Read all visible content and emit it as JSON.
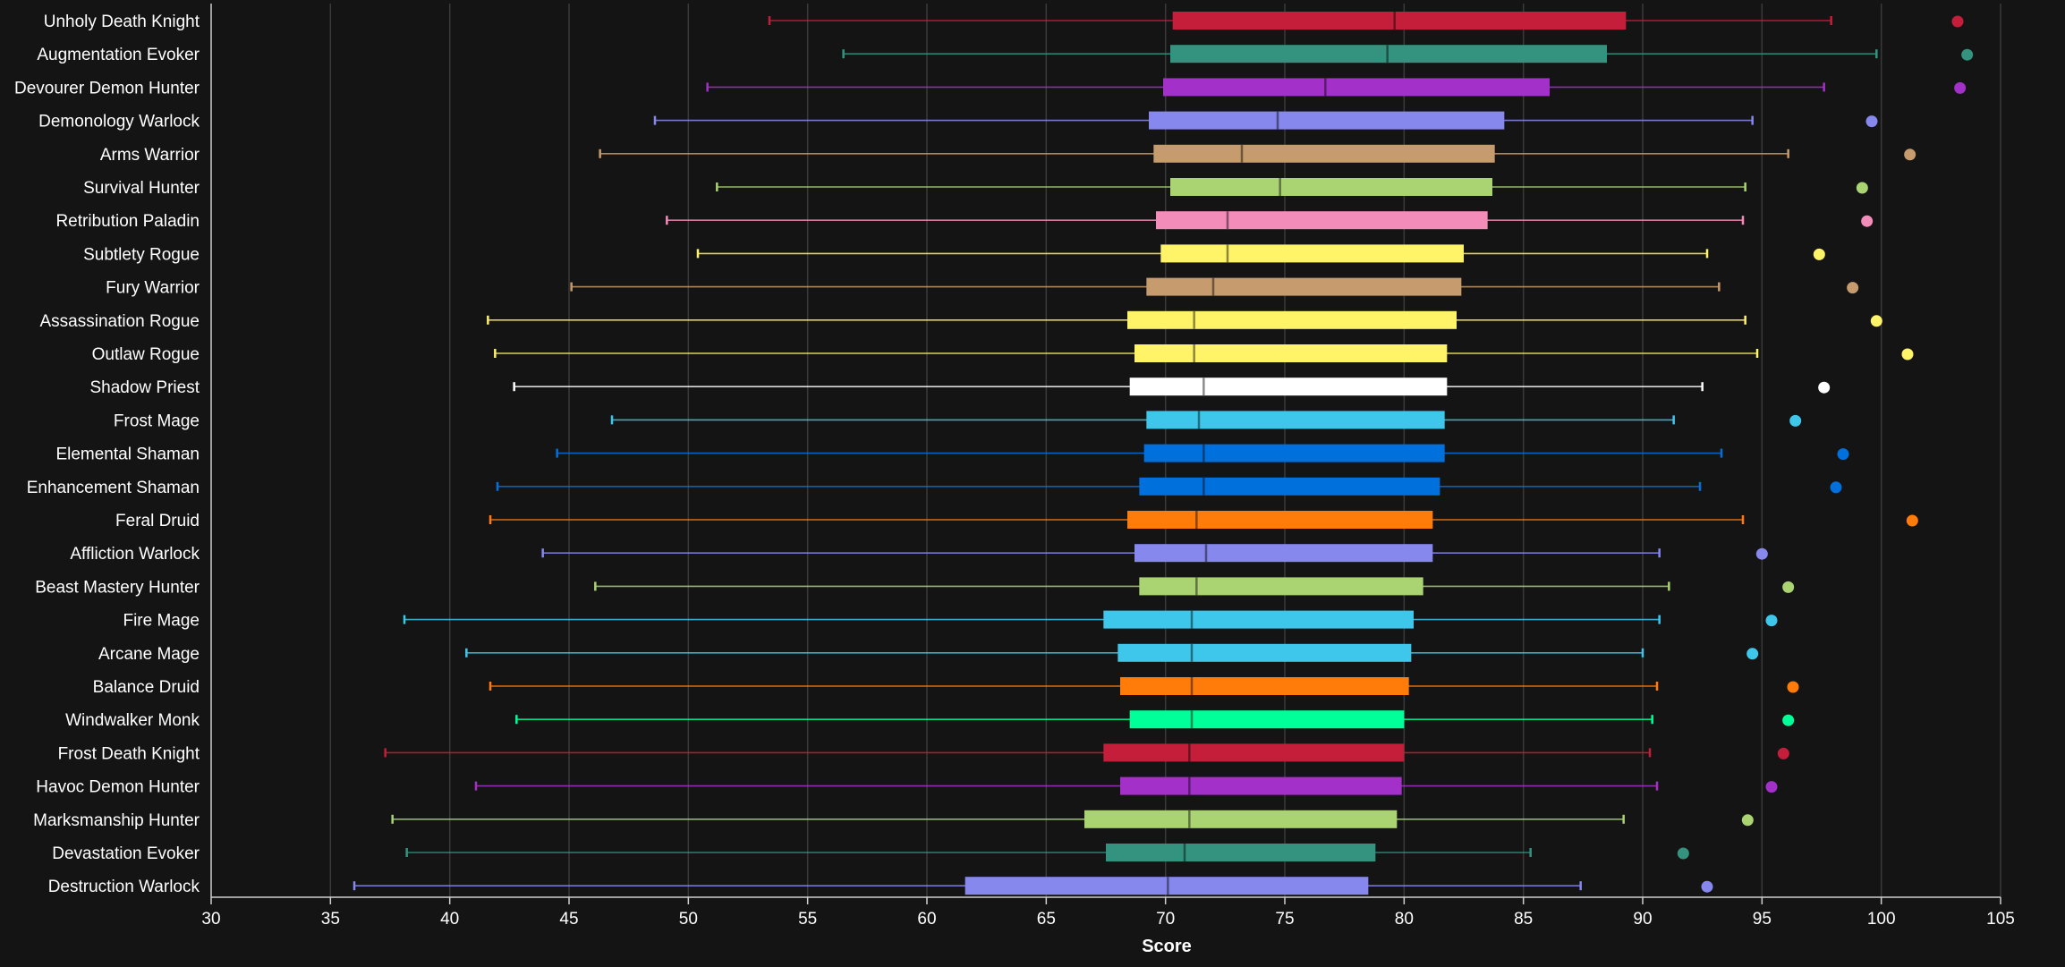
{
  "chart_data": {
    "type": "box",
    "title": "",
    "xlabel": "Score",
    "ylabel": "",
    "xlim": [
      30,
      105
    ],
    "xticks": [
      30,
      35,
      40,
      45,
      50,
      55,
      60,
      65,
      70,
      75,
      80,
      85,
      90,
      95,
      100,
      105
    ],
    "grid": "vertical",
    "background": "#141414",
    "series": [
      {
        "name": "Unholy Death Knight",
        "color": "#C41E3A",
        "min": 53.4,
        "q1": 70.3,
        "median": 79.6,
        "q3": 89.3,
        "max": 97.9,
        "outlier": 103.2
      },
      {
        "name": "Augmentation Evoker",
        "color": "#33937F",
        "min": 56.5,
        "q1": 70.2,
        "median": 79.3,
        "q3": 88.5,
        "max": 99.8,
        "outlier": 103.6
      },
      {
        "name": "Devourer Demon Hunter",
        "color": "#A330C9",
        "min": 50.8,
        "q1": 69.9,
        "median": 76.7,
        "q3": 86.1,
        "max": 97.6,
        "outlier": 103.3
      },
      {
        "name": "Demonology Warlock",
        "color": "#8788EE",
        "min": 48.6,
        "q1": 69.3,
        "median": 74.7,
        "q3": 84.2,
        "max": 94.6,
        "outlier": 99.6
      },
      {
        "name": "Arms Warrior",
        "color": "#C69B6D",
        "min": 46.3,
        "q1": 69.5,
        "median": 73.2,
        "q3": 83.8,
        "max": 96.1,
        "outlier": 101.2
      },
      {
        "name": "Survival Hunter",
        "color": "#AAD372",
        "min": 51.2,
        "q1": 70.2,
        "median": 74.8,
        "q3": 83.7,
        "max": 94.3,
        "outlier": 99.2
      },
      {
        "name": "Retribution Paladin",
        "color": "#F48CBA",
        "min": 49.1,
        "q1": 69.6,
        "median": 72.6,
        "q3": 83.5,
        "max": 94.2,
        "outlier": 99.4
      },
      {
        "name": "Subtlety Rogue",
        "color": "#FFF468",
        "min": 50.4,
        "q1": 69.8,
        "median": 72.6,
        "q3": 82.5,
        "max": 92.7,
        "outlier": 97.4
      },
      {
        "name": "Fury Warrior",
        "color": "#C69B6D",
        "min": 45.1,
        "q1": 69.2,
        "median": 72.0,
        "q3": 82.4,
        "max": 93.2,
        "outlier": 98.8
      },
      {
        "name": "Assassination Rogue",
        "color": "#FFF468",
        "min": 41.6,
        "q1": 68.4,
        "median": 71.2,
        "q3": 82.2,
        "max": 94.3,
        "outlier": 99.8
      },
      {
        "name": "Outlaw Rogue",
        "color": "#FFF468",
        "min": 41.9,
        "q1": 68.7,
        "median": 71.2,
        "q3": 81.8,
        "max": 94.8,
        "outlier": 101.1
      },
      {
        "name": "Shadow Priest",
        "color": "#FFFFFF",
        "min": 42.7,
        "q1": 68.5,
        "median": 71.6,
        "q3": 81.8,
        "max": 92.5,
        "outlier": 97.6
      },
      {
        "name": "Frost Mage",
        "color": "#3FC7EB",
        "min": 46.8,
        "q1": 69.2,
        "median": 71.4,
        "q3": 81.7,
        "max": 91.3,
        "outlier": 96.4
      },
      {
        "name": "Elemental Shaman",
        "color": "#0070DD",
        "min": 44.5,
        "q1": 69.1,
        "median": 71.6,
        "q3": 81.7,
        "max": 93.3,
        "outlier": 98.4
      },
      {
        "name": "Enhancement Shaman",
        "color": "#0070DD",
        "min": 42.0,
        "q1": 68.9,
        "median": 71.6,
        "q3": 81.5,
        "max": 92.4,
        "outlier": 98.1
      },
      {
        "name": "Feral Druid",
        "color": "#FF7C0A",
        "min": 41.7,
        "q1": 68.4,
        "median": 71.3,
        "q3": 81.2,
        "max": 94.2,
        "outlier": 101.3
      },
      {
        "name": "Affliction Warlock",
        "color": "#8788EE",
        "min": 43.9,
        "q1": 68.7,
        "median": 71.7,
        "q3": 81.2,
        "max": 90.7,
        "outlier": 95.0
      },
      {
        "name": "Beast Mastery Hunter",
        "color": "#AAD372",
        "min": 46.1,
        "q1": 68.9,
        "median": 71.3,
        "q3": 80.8,
        "max": 91.1,
        "outlier": 96.1
      },
      {
        "name": "Fire Mage",
        "color": "#3FC7EB",
        "min": 38.1,
        "q1": 67.4,
        "median": 71.1,
        "q3": 80.4,
        "max": 90.7,
        "outlier": 95.4
      },
      {
        "name": "Arcane Mage",
        "color": "#3FC7EB",
        "min": 40.7,
        "q1": 68.0,
        "median": 71.1,
        "q3": 80.3,
        "max": 90.0,
        "outlier": 94.6
      },
      {
        "name": "Balance Druid",
        "color": "#FF7C0A",
        "min": 41.7,
        "q1": 68.1,
        "median": 71.1,
        "q3": 80.2,
        "max": 90.6,
        "outlier": 96.3
      },
      {
        "name": "Windwalker Monk",
        "color": "#00FF98",
        "min": 42.8,
        "q1": 68.5,
        "median": 71.1,
        "q3": 80.0,
        "max": 90.4,
        "outlier": 96.1
      },
      {
        "name": "Frost Death Knight",
        "color": "#C41E3A",
        "min": 37.3,
        "q1": 67.4,
        "median": 71.0,
        "q3": 80.0,
        "max": 90.3,
        "outlier": 95.9
      },
      {
        "name": "Havoc Demon Hunter",
        "color": "#A330C9",
        "min": 41.1,
        "q1": 68.1,
        "median": 71.0,
        "q3": 79.9,
        "max": 90.6,
        "outlier": 95.4
      },
      {
        "name": "Marksmanship Hunter",
        "color": "#AAD372",
        "min": 37.6,
        "q1": 66.6,
        "median": 71.0,
        "q3": 79.7,
        "max": 89.2,
        "outlier": 94.4
      },
      {
        "name": "Devastation Evoker",
        "color": "#33937F",
        "min": 38.2,
        "q1": 67.5,
        "median": 70.8,
        "q3": 78.8,
        "max": 85.3,
        "outlier": 91.7
      },
      {
        "name": "Destruction Warlock",
        "color": "#8788EE",
        "min": 36.0,
        "q1": 61.6,
        "median": 70.1,
        "q3": 78.5,
        "max": 87.4,
        "outlier": 92.7
      }
    ]
  }
}
